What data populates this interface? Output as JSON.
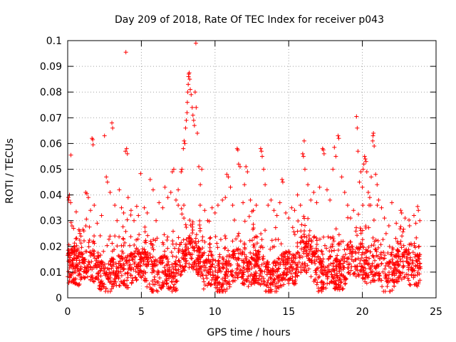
{
  "chart_data": {
    "type": "scatter",
    "title": "Day 209 of 2018, Rate Of TEC Index for receiver p043",
    "xlabel": "GPS time / hours",
    "ylabel": "ROTI / TECUs",
    "xlim": [
      0,
      25
    ],
    "ylim": [
      0,
      0.1
    ],
    "x_ticks": [
      0,
      5,
      10,
      15,
      20,
      25
    ],
    "y_ticks": [
      0,
      0.01,
      0.02,
      0.03,
      0.04,
      0.05,
      0.06,
      0.07,
      0.08,
      0.09,
      0.1
    ],
    "x_tick_labels": [
      "0",
      "5",
      "10",
      "15",
      "20",
      "25"
    ],
    "y_tick_labels": [
      "0",
      "0.01",
      "0.02",
      "0.03",
      "0.04",
      "0.05",
      "0.06",
      "0.07",
      "0.08",
      "0.09",
      "0.1"
    ],
    "grid": true,
    "marker": "+",
    "point_color": "#ff0000",
    "series": [
      {
        "name": "ROTI",
        "points": [
          [
            0.05,
            0.039
          ],
          [
            0.08,
            0.038
          ],
          [
            0.12,
            0.04
          ],
          [
            0.2,
            0.037
          ],
          [
            0.22,
            0.0555
          ],
          [
            0.4,
            0.027
          ],
          [
            0.55,
            0.023
          ],
          [
            0.7,
            0.019
          ],
          [
            0.9,
            0.024
          ],
          [
            1.1,
            0.026
          ],
          [
            1.22,
            0.041
          ],
          [
            1.3,
            0.0405
          ],
          [
            1.4,
            0.039
          ],
          [
            1.55,
            0.034
          ],
          [
            1.65,
            0.062
          ],
          [
            1.7,
            0.0615
          ],
          [
            1.72,
            0.0595
          ],
          [
            1.8,
            0.036
          ],
          [
            2.0,
            0.029
          ],
          [
            2.3,
            0.032
          ],
          [
            2.5,
            0.063
          ],
          [
            2.62,
            0.047
          ],
          [
            2.7,
            0.045
          ],
          [
            2.88,
            0.041
          ],
          [
            3.0,
            0.068
          ],
          [
            3.05,
            0.066
          ],
          [
            3.2,
            0.036
          ],
          [
            3.35,
            0.03
          ],
          [
            3.5,
            0.042
          ],
          [
            3.65,
            0.035
          ],
          [
            3.8,
            0.033
          ],
          [
            3.92,
            0.057
          ],
          [
            3.95,
            0.0955
          ],
          [
            4.0,
            0.058
          ],
          [
            4.05,
            0.056
          ],
          [
            4.1,
            0.039
          ],
          [
            4.3,
            0.034
          ],
          [
            4.5,
            0.03
          ],
          [
            4.8,
            0.032
          ],
          [
            4.95,
            0.0483
          ],
          [
            5.2,
            0.035
          ],
          [
            5.4,
            0.033
          ],
          [
            5.6,
            0.046
          ],
          [
            5.8,
            0.042
          ],
          [
            6.0,
            0.03
          ],
          [
            6.2,
            0.037
          ],
          [
            6.45,
            0.035
          ],
          [
            6.6,
            0.043
          ],
          [
            6.8,
            0.039
          ],
          [
            7.0,
            0.041
          ],
          [
            7.1,
            0.049
          ],
          [
            7.2,
            0.05
          ],
          [
            7.35,
            0.038
          ],
          [
            7.5,
            0.042
          ],
          [
            7.7,
            0.049
          ],
          [
            7.75,
            0.05
          ],
          [
            7.85,
            0.058
          ],
          [
            7.9,
            0.061
          ],
          [
            7.95,
            0.06
          ],
          [
            8.0,
            0.066
          ],
          [
            8.05,
            0.069
          ],
          [
            8.1,
            0.072
          ],
          [
            8.12,
            0.076
          ],
          [
            8.15,
            0.08
          ],
          [
            8.18,
            0.083
          ],
          [
            8.2,
            0.086
          ],
          [
            8.22,
            0.087
          ],
          [
            8.25,
            0.0875
          ],
          [
            8.28,
            0.085
          ],
          [
            8.32,
            0.081
          ],
          [
            8.38,
            0.079
          ],
          [
            8.45,
            0.074
          ],
          [
            8.5,
            0.071
          ],
          [
            8.55,
            0.069
          ],
          [
            8.6,
            0.067
          ],
          [
            8.65,
            0.08
          ],
          [
            8.7,
            0.099
          ],
          [
            8.72,
            0.074
          ],
          [
            8.8,
            0.064
          ],
          [
            8.9,
            0.051
          ],
          [
            9.0,
            0.044
          ],
          [
            9.1,
            0.05
          ],
          [
            9.3,
            0.034
          ],
          [
            9.5,
            0.03
          ],
          [
            9.8,
            0.035
          ],
          [
            10.0,
            0.033
          ],
          [
            10.2,
            0.036
          ],
          [
            10.5,
            0.038
          ],
          [
            10.7,
            0.039
          ],
          [
            10.8,
            0.048
          ],
          [
            10.9,
            0.047
          ],
          [
            11.05,
            0.043
          ],
          [
            11.2,
            0.036
          ],
          [
            11.5,
            0.058
          ],
          [
            11.55,
            0.0575
          ],
          [
            11.6,
            0.052
          ],
          [
            11.7,
            0.051
          ],
          [
            11.9,
            0.037
          ],
          [
            12.0,
            0.044
          ],
          [
            12.1,
            0.051
          ],
          [
            12.2,
            0.049
          ],
          [
            12.4,
            0.038
          ],
          [
            12.6,
            0.034
          ],
          [
            12.8,
            0.036
          ],
          [
            13.1,
            0.058
          ],
          [
            13.15,
            0.057
          ],
          [
            13.2,
            0.055
          ],
          [
            13.3,
            0.05
          ],
          [
            13.4,
            0.044
          ],
          [
            13.6,
            0.036
          ],
          [
            13.8,
            0.038
          ],
          [
            14.0,
            0.034
          ],
          [
            14.2,
            0.032
          ],
          [
            14.4,
            0.037
          ],
          [
            14.55,
            0.046
          ],
          [
            14.6,
            0.045
          ],
          [
            14.8,
            0.033
          ],
          [
            15.0,
            0.031
          ],
          [
            15.2,
            0.035
          ],
          [
            15.4,
            0.034
          ],
          [
            15.6,
            0.04
          ],
          [
            15.8,
            0.036
          ],
          [
            15.95,
            0.056
          ],
          [
            16.0,
            0.055
          ],
          [
            16.05,
            0.061
          ],
          [
            16.1,
            0.05
          ],
          [
            16.3,
            0.044
          ],
          [
            16.5,
            0.038
          ],
          [
            16.7,
            0.041
          ],
          [
            16.9,
            0.037
          ],
          [
            17.1,
            0.043
          ],
          [
            17.3,
            0.058
          ],
          [
            17.35,
            0.0575
          ],
          [
            17.4,
            0.056
          ],
          [
            17.6,
            0.042
          ],
          [
            17.8,
            0.038
          ],
          [
            18.0,
            0.05
          ],
          [
            18.1,
            0.0585
          ],
          [
            18.2,
            0.055
          ],
          [
            18.35,
            0.063
          ],
          [
            18.4,
            0.062
          ],
          [
            18.6,
            0.047
          ],
          [
            18.8,
            0.041
          ],
          [
            19.0,
            0.036
          ],
          [
            19.2,
            0.031
          ],
          [
            19.4,
            0.034
          ],
          [
            19.6,
            0.0705
          ],
          [
            19.65,
            0.066
          ],
          [
            19.7,
            0.057
          ],
          [
            19.8,
            0.045
          ],
          [
            19.9,
            0.049
          ],
          [
            20.0,
            0.043
          ],
          [
            20.05,
            0.05
          ],
          [
            20.1,
            0.052
          ],
          [
            20.15,
            0.055
          ],
          [
            20.2,
            0.054
          ],
          [
            20.25,
            0.053
          ],
          [
            20.3,
            0.049
          ],
          [
            20.4,
            0.041
          ],
          [
            20.5,
            0.039
          ],
          [
            20.6,
            0.047
          ],
          [
            20.7,
            0.061
          ],
          [
            20.72,
            0.063
          ],
          [
            20.75,
            0.064
          ],
          [
            20.8,
            0.059
          ],
          [
            20.9,
            0.048
          ],
          [
            21.0,
            0.044
          ],
          [
            21.1,
            0.038
          ],
          [
            21.3,
            0.035
          ],
          [
            21.5,
            0.031
          ],
          [
            21.8,
            0.028
          ],
          [
            22.0,
            0.037
          ],
          [
            22.3,
            0.029
          ],
          [
            22.6,
            0.034
          ],
          [
            22.9,
            0.031
          ],
          [
            23.2,
            0.028
          ],
          [
            23.5,
            0.032
          ],
          [
            23.75,
            0.0355
          ],
          [
            23.8,
            0.034
          ],
          [
            23.9,
            0.03
          ]
        ]
      }
    ]
  }
}
